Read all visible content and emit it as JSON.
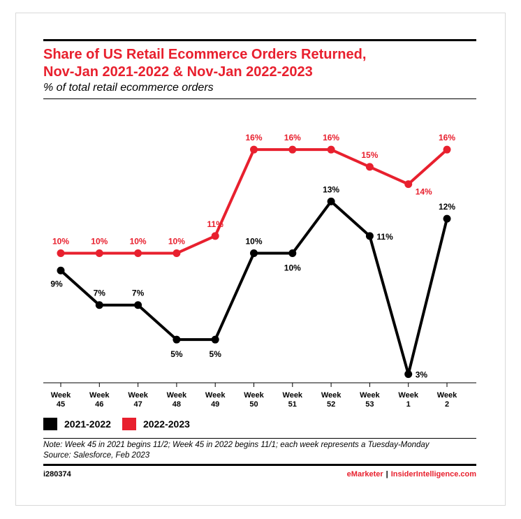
{
  "header": {
    "title_line1": "Share of US Retail Ecommerce Orders Returned,",
    "title_line2": "Nov-Jan 2021-2022 & Nov-Jan 2022-2023",
    "subtitle": "% of total retail ecommerce orders"
  },
  "chart_data": {
    "type": "line",
    "title": "Share of US Retail Ecommerce Orders Returned, Nov-Jan 2021-2022 & Nov-Jan 2022-2023",
    "subtitle": "% of total retail ecommerce orders",
    "categories": [
      [
        "Week",
        "45"
      ],
      [
        "Week",
        "46"
      ],
      [
        "Week",
        "47"
      ],
      [
        "Week",
        "48"
      ],
      [
        "Week",
        "49"
      ],
      [
        "Week",
        "50"
      ],
      [
        "Week",
        "51"
      ],
      [
        "Week",
        "52"
      ],
      [
        "Week",
        "53"
      ],
      [
        "Week",
        "1"
      ],
      [
        "Week",
        "2"
      ]
    ],
    "series": [
      {
        "name": "2021-2022",
        "color": "#000000",
        "values": [
          9,
          7,
          7,
          5,
          5,
          10,
          10,
          13,
          11,
          3,
          12
        ],
        "labels": [
          "9%",
          "7%",
          "7%",
          "5%",
          "5%",
          "10%",
          "10%",
          "13%",
          "11%",
          "3%",
          "12%"
        ],
        "label_pos": [
          "below-left",
          "above",
          "above",
          "below",
          "below",
          "above",
          "below",
          "above",
          "right",
          "right",
          "above"
        ]
      },
      {
        "name": "2022-2023",
        "color": "#e8202e",
        "values": [
          10,
          10,
          10,
          10,
          11,
          16,
          16,
          16,
          15,
          14,
          16
        ],
        "labels": [
          "10%",
          "10%",
          "10%",
          "10%",
          "11%",
          "16%",
          "16%",
          "16%",
          "15%",
          "14%",
          "16%"
        ],
        "label_pos": [
          "above",
          "above",
          "above",
          "above",
          "above",
          "above",
          "above",
          "above",
          "above",
          "below-right",
          "above"
        ]
      }
    ],
    "xlabel": "",
    "ylabel": "",
    "ylim": [
      2.5,
      19
    ],
    "grid": false,
    "legend_placement": "bottom-left"
  },
  "legend": [
    {
      "label": "2021-2022",
      "color": "#000000"
    },
    {
      "label": "2022-2023",
      "color": "#e8202e"
    }
  ],
  "footer": {
    "note": "Note: Week 45 in 2021 begins 11/2; Week 45 in 2022 begins 11/1; each week represents a Tuesday-Monday",
    "source": "Source: Salesforce, Feb 2023",
    "chart_id": "i280374",
    "brand1": "eMarketer",
    "separator": "|",
    "brand2": "InsiderIntelligence.com"
  }
}
